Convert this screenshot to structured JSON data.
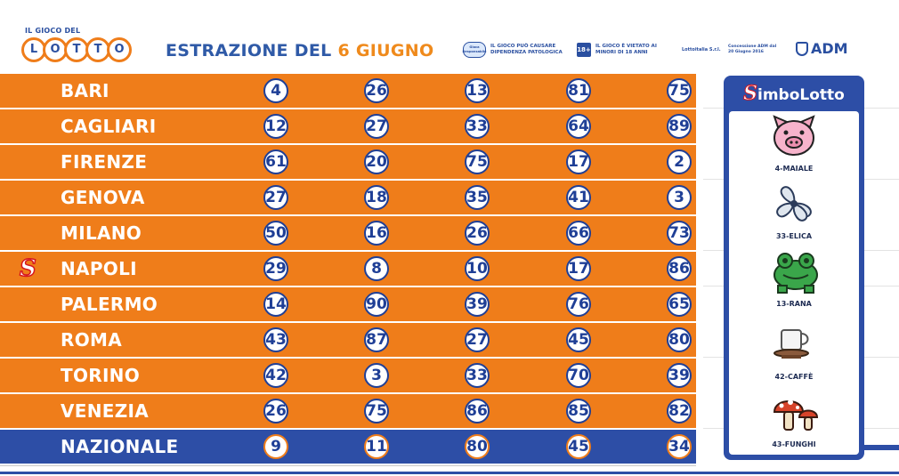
{
  "header": {
    "logo_small": "IL GIOCO DEL",
    "logo_letters": [
      "L",
      "O",
      "T",
      "T",
      "O"
    ],
    "title_prefix": "ESTRAZIONE DEL ",
    "title_date": "6 GIUGNO",
    "disclaimer_1": "IL GIOCO PUÒ CAUSARE DIPENDENZA PATOLOGICA",
    "badge_lotto": "Gioca Responsabile",
    "badge_18": "18+",
    "disclaimer_2": "IL GIOCO È VIETATO AI MINORI DI 18 ANNI",
    "lotterie": "Lottoitalia S.r.l.",
    "concessione": "Concessione ADM dal 20 Giugno 2016",
    "adm": "ADM"
  },
  "draws": [
    {
      "city": "BARI",
      "numbers": [
        "4",
        "26",
        "13",
        "81",
        "75"
      ]
    },
    {
      "city": "CAGLIARI",
      "numbers": [
        "12",
        "27",
        "33",
        "64",
        "89"
      ]
    },
    {
      "city": "FIRENZE",
      "numbers": [
        "61",
        "20",
        "75",
        "17",
        "2"
      ]
    },
    {
      "city": "GENOVA",
      "numbers": [
        "27",
        "18",
        "35",
        "41",
        "3"
      ]
    },
    {
      "city": "MILANO",
      "numbers": [
        "50",
        "16",
        "26",
        "66",
        "73"
      ]
    },
    {
      "city": "NAPOLI",
      "numbers": [
        "29",
        "8",
        "10",
        "17",
        "86"
      ]
    },
    {
      "city": "PALERMO",
      "numbers": [
        "14",
        "90",
        "39",
        "76",
        "65"
      ]
    },
    {
      "city": "ROMA",
      "numbers": [
        "43",
        "87",
        "27",
        "45",
        "80"
      ]
    },
    {
      "city": "TORINO",
      "numbers": [
        "42",
        "3",
        "33",
        "70",
        "39"
      ]
    },
    {
      "city": "VENEZIA",
      "numbers": [
        "26",
        "75",
        "86",
        "85",
        "82"
      ]
    },
    {
      "city": "NAZIONALE",
      "numbers": [
        "9",
        "11",
        "80",
        "45",
        "34"
      ]
    }
  ],
  "simbolotto_city_marker": "S",
  "simbolotto": {
    "title_s": "S",
    "title_rest": "imboLotto",
    "symbols": [
      {
        "label": "4-MAIALE",
        "icon": "pig-icon"
      },
      {
        "label": "33-ELICA",
        "icon": "propeller-icon"
      },
      {
        "label": "13-RANA",
        "icon": "frog-icon"
      },
      {
        "label": "42-CAFFÈ",
        "icon": "coffee-cup-icon"
      },
      {
        "label": "43-FUNGHI",
        "icon": "mushrooms-icon"
      }
    ]
  },
  "colors": {
    "orange": "#ef7d1a",
    "blue": "#2d4ea6",
    "text_blue": "#1f3f96",
    "red": "#d6171f"
  }
}
